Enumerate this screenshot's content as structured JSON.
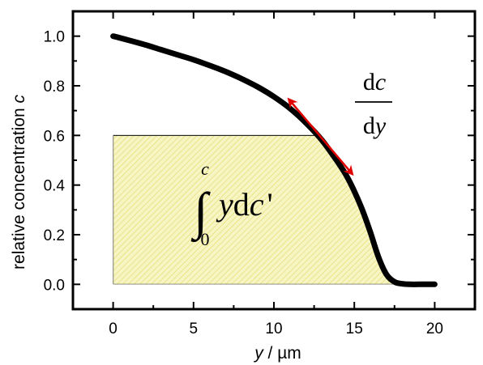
{
  "chart_data": {
    "type": "line",
    "title": "",
    "xlabel_var": "y",
    "xlabel_unit": " / µm",
    "ylabel_text": "relative concentration ",
    "ylabel_var": "c",
    "xlim": [
      -2.5,
      22.5
    ],
    "ylim": [
      -0.1,
      1.1
    ],
    "x_ticks": [
      0,
      5,
      10,
      15,
      20
    ],
    "y_ticks": [
      0.0,
      0.2,
      0.4,
      0.6,
      0.8,
      1.0
    ],
    "x_tick_labels": [
      "0",
      "5",
      "10",
      "15",
      "20"
    ],
    "y_tick_labels": [
      "0.0",
      "0.2",
      "0.4",
      "0.6",
      "0.8",
      "1.0"
    ],
    "grid": false,
    "series": [
      {
        "color": "#000000",
        "x": [
          0,
          1,
          2,
          3,
          4,
          5,
          6,
          7,
          8,
          9,
          10,
          11,
          12,
          13,
          14,
          14.5,
          15,
          15.5,
          16,
          16.5,
          17,
          17.5,
          18,
          18.5,
          19,
          19.5,
          20
        ],
        "y": [
          1.0,
          0.983,
          0.965,
          0.945,
          0.925,
          0.905,
          0.882,
          0.857,
          0.828,
          0.795,
          0.756,
          0.709,
          0.65,
          0.58,
          0.49,
          0.439,
          0.375,
          0.3,
          0.21,
          0.11,
          0.04,
          0.01,
          0.002,
          0.0,
          0.0,
          0.0,
          0.0
        ]
      }
    ],
    "shaded_region": {
      "x_from": 0,
      "y_from": 0.0,
      "y_top": 0.6,
      "fill": "#f2f2a8",
      "hatch_color": "#e8e070",
      "border_color": "#000000"
    },
    "tangent_arrow": {
      "color": "#e00000",
      "from": [
        11.0,
        0.74
      ],
      "to": [
        14.8,
        0.45
      ]
    },
    "annotations": {
      "derivative_num_d": "d",
      "derivative_num_var": "c",
      "derivative_den_d": "d",
      "derivative_den_var": "y",
      "integral_symbol": "∫",
      "integral_upper": "c",
      "integral_lower": "0",
      "integrand_var": "y",
      "integrand_d": "d",
      "integrand_cvar": "c",
      "integrand_prime": "'"
    }
  }
}
